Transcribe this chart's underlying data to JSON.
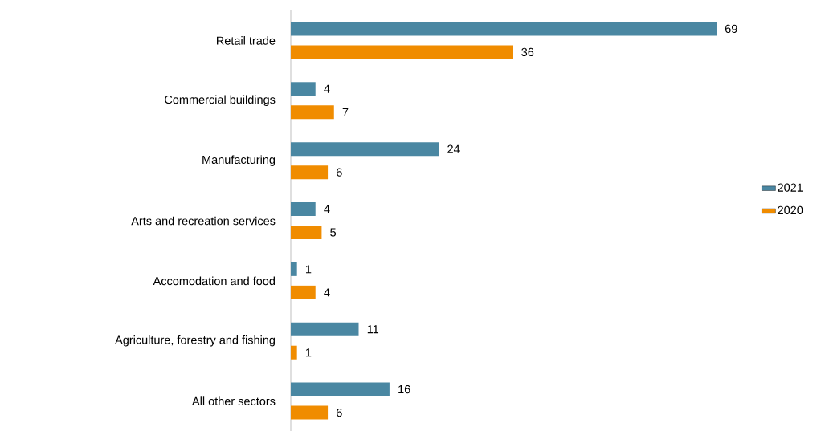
{
  "chart_data": {
    "type": "bar",
    "orientation": "horizontal",
    "categories": [
      "Retail trade",
      "Commercial buildings",
      "Manufacturing",
      "Arts and recreation services",
      "Accomodation and food",
      "Agriculture, forestry and fishing",
      "All other sectors"
    ],
    "series": [
      {
        "name": "2021",
        "color": "#4a87a2",
        "values": [
          69,
          4,
          24,
          4,
          1,
          11,
          16
        ]
      },
      {
        "name": "2020",
        "color": "#f08c00",
        "values": [
          36,
          7,
          6,
          5,
          4,
          1,
          6
        ]
      }
    ],
    "data_labels": true,
    "legend": "right",
    "tick_labels": "y",
    "grid": false
  }
}
